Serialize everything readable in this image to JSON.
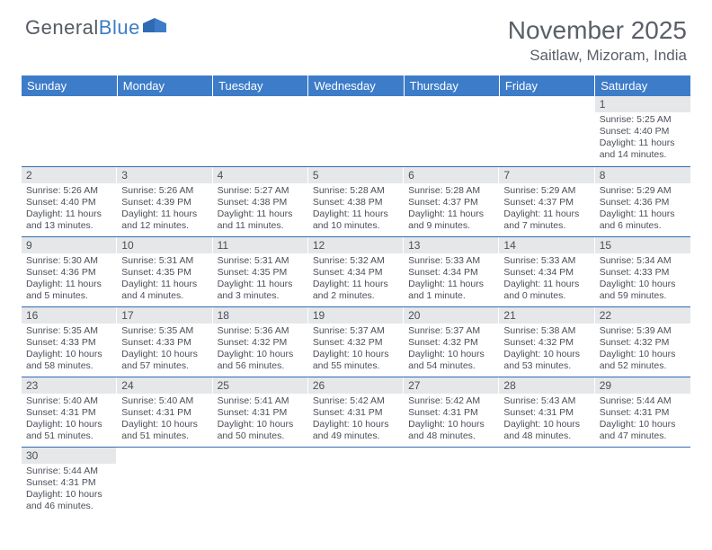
{
  "logo": {
    "text1": "General",
    "text2": "Blue"
  },
  "title": "November 2025",
  "location": "Saitlaw, Mizoram, India",
  "colors": {
    "header_bg": "#3d7cc9",
    "header_text": "#ffffff",
    "daynum_bg": "#e5e7e9",
    "row_border": "#2f6bb3",
    "body_text": "#4a4f58",
    "title_text": "#5a5f68"
  },
  "weekdays": [
    "Sunday",
    "Monday",
    "Tuesday",
    "Wednesday",
    "Thursday",
    "Friday",
    "Saturday"
  ],
  "weeks": [
    [
      null,
      null,
      null,
      null,
      null,
      null,
      {
        "n": "1",
        "sunrise": "5:25 AM",
        "sunset": "4:40 PM",
        "daylight": "11 hours and 14 minutes."
      }
    ],
    [
      {
        "n": "2",
        "sunrise": "5:26 AM",
        "sunset": "4:40 PM",
        "daylight": "11 hours and 13 minutes."
      },
      {
        "n": "3",
        "sunrise": "5:26 AM",
        "sunset": "4:39 PM",
        "daylight": "11 hours and 12 minutes."
      },
      {
        "n": "4",
        "sunrise": "5:27 AM",
        "sunset": "4:38 PM",
        "daylight": "11 hours and 11 minutes."
      },
      {
        "n": "5",
        "sunrise": "5:28 AM",
        "sunset": "4:38 PM",
        "daylight": "11 hours and 10 minutes."
      },
      {
        "n": "6",
        "sunrise": "5:28 AM",
        "sunset": "4:37 PM",
        "daylight": "11 hours and 9 minutes."
      },
      {
        "n": "7",
        "sunrise": "5:29 AM",
        "sunset": "4:37 PM",
        "daylight": "11 hours and 7 minutes."
      },
      {
        "n": "8",
        "sunrise": "5:29 AM",
        "sunset": "4:36 PM",
        "daylight": "11 hours and 6 minutes."
      }
    ],
    [
      {
        "n": "9",
        "sunrise": "5:30 AM",
        "sunset": "4:36 PM",
        "daylight": "11 hours and 5 minutes."
      },
      {
        "n": "10",
        "sunrise": "5:31 AM",
        "sunset": "4:35 PM",
        "daylight": "11 hours and 4 minutes."
      },
      {
        "n": "11",
        "sunrise": "5:31 AM",
        "sunset": "4:35 PM",
        "daylight": "11 hours and 3 minutes."
      },
      {
        "n": "12",
        "sunrise": "5:32 AM",
        "sunset": "4:34 PM",
        "daylight": "11 hours and 2 minutes."
      },
      {
        "n": "13",
        "sunrise": "5:33 AM",
        "sunset": "4:34 PM",
        "daylight": "11 hours and 1 minute."
      },
      {
        "n": "14",
        "sunrise": "5:33 AM",
        "sunset": "4:34 PM",
        "daylight": "11 hours and 0 minutes."
      },
      {
        "n": "15",
        "sunrise": "5:34 AM",
        "sunset": "4:33 PM",
        "daylight": "10 hours and 59 minutes."
      }
    ],
    [
      {
        "n": "16",
        "sunrise": "5:35 AM",
        "sunset": "4:33 PM",
        "daylight": "10 hours and 58 minutes."
      },
      {
        "n": "17",
        "sunrise": "5:35 AM",
        "sunset": "4:33 PM",
        "daylight": "10 hours and 57 minutes."
      },
      {
        "n": "18",
        "sunrise": "5:36 AM",
        "sunset": "4:32 PM",
        "daylight": "10 hours and 56 minutes."
      },
      {
        "n": "19",
        "sunrise": "5:37 AM",
        "sunset": "4:32 PM",
        "daylight": "10 hours and 55 minutes."
      },
      {
        "n": "20",
        "sunrise": "5:37 AM",
        "sunset": "4:32 PM",
        "daylight": "10 hours and 54 minutes."
      },
      {
        "n": "21",
        "sunrise": "5:38 AM",
        "sunset": "4:32 PM",
        "daylight": "10 hours and 53 minutes."
      },
      {
        "n": "22",
        "sunrise": "5:39 AM",
        "sunset": "4:32 PM",
        "daylight": "10 hours and 52 minutes."
      }
    ],
    [
      {
        "n": "23",
        "sunrise": "5:40 AM",
        "sunset": "4:31 PM",
        "daylight": "10 hours and 51 minutes."
      },
      {
        "n": "24",
        "sunrise": "5:40 AM",
        "sunset": "4:31 PM",
        "daylight": "10 hours and 51 minutes."
      },
      {
        "n": "25",
        "sunrise": "5:41 AM",
        "sunset": "4:31 PM",
        "daylight": "10 hours and 50 minutes."
      },
      {
        "n": "26",
        "sunrise": "5:42 AM",
        "sunset": "4:31 PM",
        "daylight": "10 hours and 49 minutes."
      },
      {
        "n": "27",
        "sunrise": "5:42 AM",
        "sunset": "4:31 PM",
        "daylight": "10 hours and 48 minutes."
      },
      {
        "n": "28",
        "sunrise": "5:43 AM",
        "sunset": "4:31 PM",
        "daylight": "10 hours and 48 minutes."
      },
      {
        "n": "29",
        "sunrise": "5:44 AM",
        "sunset": "4:31 PM",
        "daylight": "10 hours and 47 minutes."
      }
    ],
    [
      {
        "n": "30",
        "sunrise": "5:44 AM",
        "sunset": "4:31 PM",
        "daylight": "10 hours and 46 minutes."
      },
      null,
      null,
      null,
      null,
      null,
      null
    ]
  ]
}
